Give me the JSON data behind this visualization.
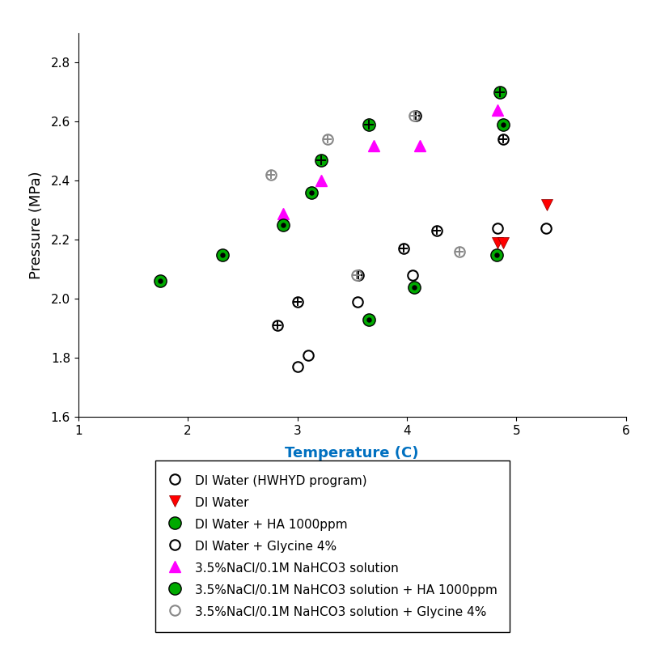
{
  "xlim": [
    1,
    6
  ],
  "ylim": [
    1.6,
    2.9
  ],
  "xlabel": "Temperature (C)",
  "ylabel": "Pressure (MPa)",
  "xticks": [
    1,
    2,
    3,
    4,
    5,
    6
  ],
  "yticks": [
    1.6,
    1.8,
    2.0,
    2.2,
    2.4,
    2.6,
    2.8
  ],
  "series": {
    "di_water_hwhyd": {
      "label": "DI Water (HWHYD program)",
      "x": [
        3.0,
        3.1,
        3.55,
        4.05,
        4.83,
        5.27
      ],
      "y": [
        1.77,
        1.81,
        1.99,
        2.08,
        2.24,
        2.24
      ]
    },
    "di_water": {
      "label": "DI Water",
      "x": [
        4.83,
        4.88,
        5.28
      ],
      "y": [
        2.19,
        2.19,
        2.32
      ]
    },
    "di_water_ha": {
      "label": "DI Water + HA 1000ppm",
      "x": [
        1.75,
        2.32,
        2.87,
        3.13,
        3.65,
        4.07,
        4.82,
        4.88
      ],
      "y": [
        2.06,
        2.15,
        2.25,
        2.36,
        1.93,
        2.04,
        2.15,
        2.59
      ]
    },
    "di_water_glycine": {
      "label": "DI Water + Glycine 4%",
      "x": [
        2.82,
        3.0,
        3.56,
        3.97,
        4.08,
        4.27,
        4.88
      ],
      "y": [
        1.91,
        1.99,
        2.08,
        2.17,
        2.62,
        2.23,
        2.54
      ]
    },
    "nacl_nahco3": {
      "label": "3.5%NaCl/0.1M NaHCO3 solution",
      "x": [
        2.87,
        3.22,
        3.7,
        4.12,
        4.83
      ],
      "y": [
        2.29,
        2.4,
        2.52,
        2.52,
        2.64
      ]
    },
    "nacl_nahco3_ha": {
      "label": "3.5%NaCl/0.1M NaHCO3 solution + HA 1000ppm",
      "x": [
        3.22,
        3.65,
        4.85
      ],
      "y": [
        2.47,
        2.59,
        2.7
      ]
    },
    "nacl_nahco3_glycine": {
      "label": "3.5%NaCl/0.1M NaHCO3 solution + Glycine 4%",
      "x": [
        2.76,
        3.28,
        3.54,
        4.07,
        4.48
      ],
      "y": [
        2.42,
        2.54,
        2.08,
        2.62,
        2.16
      ]
    }
  },
  "legend_fontsize": 11,
  "axis_label_fontsize": 13,
  "tick_fontsize": 11,
  "xlabel_color": "#0070C0",
  "background_color": "white"
}
